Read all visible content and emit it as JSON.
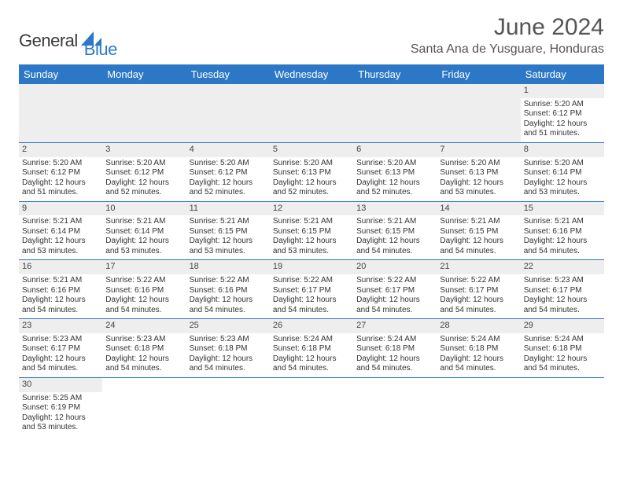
{
  "logo": {
    "text_dark": "General",
    "text_blue": "Blue"
  },
  "title": "June 2024",
  "location": "Santa Ana de Yusguare, Honduras",
  "header_color": "#2d78c6",
  "days": [
    "Sunday",
    "Monday",
    "Tuesday",
    "Wednesday",
    "Thursday",
    "Friday",
    "Saturday"
  ],
  "weeks": [
    [
      null,
      null,
      null,
      null,
      null,
      null,
      {
        "n": "1",
        "sr": "5:20 AM",
        "ss": "6:12 PM",
        "dl": "12 hours and 51 minutes."
      }
    ],
    [
      {
        "n": "2",
        "sr": "5:20 AM",
        "ss": "6:12 PM",
        "dl": "12 hours and 51 minutes."
      },
      {
        "n": "3",
        "sr": "5:20 AM",
        "ss": "6:12 PM",
        "dl": "12 hours and 52 minutes."
      },
      {
        "n": "4",
        "sr": "5:20 AM",
        "ss": "6:12 PM",
        "dl": "12 hours and 52 minutes."
      },
      {
        "n": "5",
        "sr": "5:20 AM",
        "ss": "6:13 PM",
        "dl": "12 hours and 52 minutes."
      },
      {
        "n": "6",
        "sr": "5:20 AM",
        "ss": "6:13 PM",
        "dl": "12 hours and 52 minutes."
      },
      {
        "n": "7",
        "sr": "5:20 AM",
        "ss": "6:13 PM",
        "dl": "12 hours and 53 minutes."
      },
      {
        "n": "8",
        "sr": "5:20 AM",
        "ss": "6:14 PM",
        "dl": "12 hours and 53 minutes."
      }
    ],
    [
      {
        "n": "9",
        "sr": "5:21 AM",
        "ss": "6:14 PM",
        "dl": "12 hours and 53 minutes."
      },
      {
        "n": "10",
        "sr": "5:21 AM",
        "ss": "6:14 PM",
        "dl": "12 hours and 53 minutes."
      },
      {
        "n": "11",
        "sr": "5:21 AM",
        "ss": "6:15 PM",
        "dl": "12 hours and 53 minutes."
      },
      {
        "n": "12",
        "sr": "5:21 AM",
        "ss": "6:15 PM",
        "dl": "12 hours and 53 minutes."
      },
      {
        "n": "13",
        "sr": "5:21 AM",
        "ss": "6:15 PM",
        "dl": "12 hours and 54 minutes."
      },
      {
        "n": "14",
        "sr": "5:21 AM",
        "ss": "6:15 PM",
        "dl": "12 hours and 54 minutes."
      },
      {
        "n": "15",
        "sr": "5:21 AM",
        "ss": "6:16 PM",
        "dl": "12 hours and 54 minutes."
      }
    ],
    [
      {
        "n": "16",
        "sr": "5:21 AM",
        "ss": "6:16 PM",
        "dl": "12 hours and 54 minutes."
      },
      {
        "n": "17",
        "sr": "5:22 AM",
        "ss": "6:16 PM",
        "dl": "12 hours and 54 minutes."
      },
      {
        "n": "18",
        "sr": "5:22 AM",
        "ss": "6:16 PM",
        "dl": "12 hours and 54 minutes."
      },
      {
        "n": "19",
        "sr": "5:22 AM",
        "ss": "6:17 PM",
        "dl": "12 hours and 54 minutes."
      },
      {
        "n": "20",
        "sr": "5:22 AM",
        "ss": "6:17 PM",
        "dl": "12 hours and 54 minutes."
      },
      {
        "n": "21",
        "sr": "5:22 AM",
        "ss": "6:17 PM",
        "dl": "12 hours and 54 minutes."
      },
      {
        "n": "22",
        "sr": "5:23 AM",
        "ss": "6:17 PM",
        "dl": "12 hours and 54 minutes."
      }
    ],
    [
      {
        "n": "23",
        "sr": "5:23 AM",
        "ss": "6:17 PM",
        "dl": "12 hours and 54 minutes."
      },
      {
        "n": "24",
        "sr": "5:23 AM",
        "ss": "6:18 PM",
        "dl": "12 hours and 54 minutes."
      },
      {
        "n": "25",
        "sr": "5:23 AM",
        "ss": "6:18 PM",
        "dl": "12 hours and 54 minutes."
      },
      {
        "n": "26",
        "sr": "5:24 AM",
        "ss": "6:18 PM",
        "dl": "12 hours and 54 minutes."
      },
      {
        "n": "27",
        "sr": "5:24 AM",
        "ss": "6:18 PM",
        "dl": "12 hours and 54 minutes."
      },
      {
        "n": "28",
        "sr": "5:24 AM",
        "ss": "6:18 PM",
        "dl": "12 hours and 54 minutes."
      },
      {
        "n": "29",
        "sr": "5:24 AM",
        "ss": "6:18 PM",
        "dl": "12 hours and 54 minutes."
      }
    ],
    [
      {
        "n": "30",
        "sr": "5:25 AM",
        "ss": "6:19 PM",
        "dl": "12 hours and 53 minutes."
      },
      null,
      null,
      null,
      null,
      null,
      null
    ]
  ],
  "labels": {
    "sunrise": "Sunrise: ",
    "sunset": "Sunset: ",
    "daylight": "Daylight: "
  }
}
